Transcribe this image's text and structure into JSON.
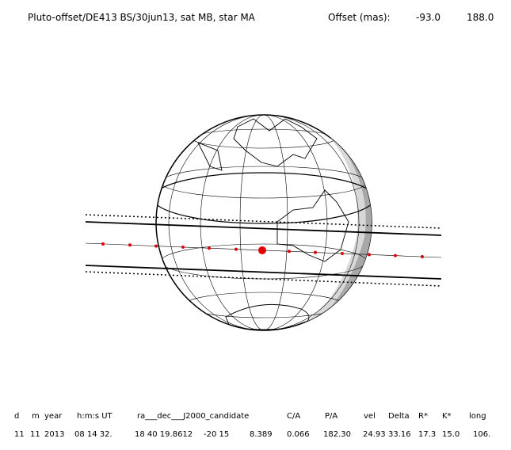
{
  "header": {
    "title": "Pluto-offset/DE413 BS/30jun13, sat MB, star MA",
    "offset_label": "Offset (mas):",
    "offset_values": [
      "-93.0",
      "188.0"
    ]
  },
  "table": {
    "columns": [
      "d",
      "m",
      "year",
      "h:m:s UT",
      "ra___dec___J2000_candidate",
      "C/A",
      "P/A",
      "vel",
      "Delta",
      "R*",
      "K*",
      "long"
    ],
    "row": [
      "11",
      "11",
      "2013",
      "08 14 32.",
      "18 40 19.8612",
      "-20 15",
      "8.389",
      "0.066",
      "182.30",
      "24.93",
      "33.16",
      "17.3",
      "15.0",
      "106."
    ]
  }
}
